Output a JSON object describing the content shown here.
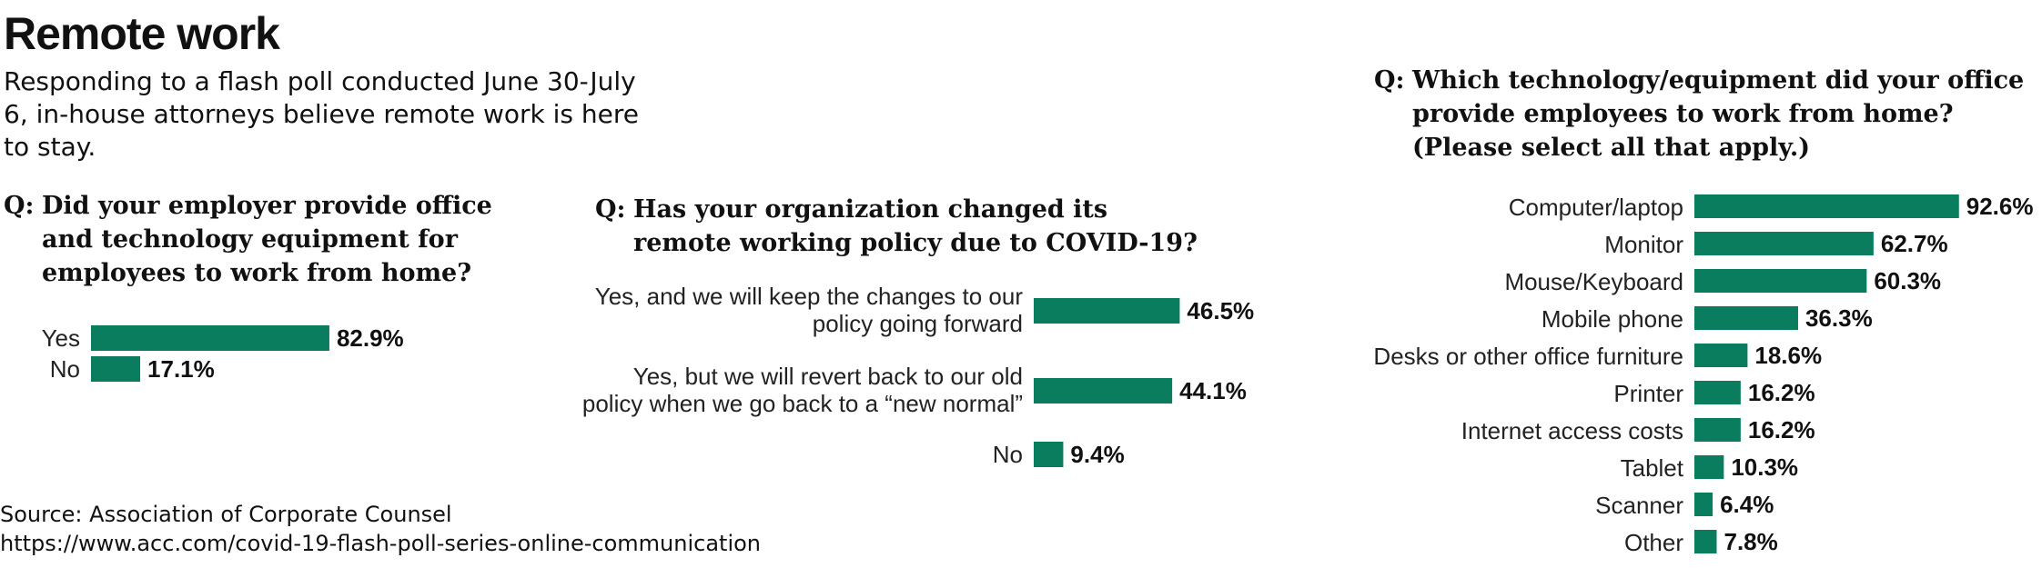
{
  "header": {
    "title": "Remote work",
    "subtitle": "Responding to a flash poll conducted June 30-July 6, in-house attorneys believe remote work is here to stay."
  },
  "colors": {
    "bar": "#0b7d5f"
  },
  "footer": {
    "source": "Source: Association of Corporate Counsel",
    "url": "https://www.acc.com/covid-19-flash-poll-series-online-communication"
  },
  "chart_data": [
    {
      "type": "bar",
      "orientation": "horizontal",
      "question_prefix": "Q:",
      "title": "Did your employer provide office\nand technology equipment for\nemployees to work from home?",
      "categories": [
        "Yes",
        "No"
      ],
      "values": [
        82.9,
        17.1
      ],
      "value_labels": [
        "82.9%",
        "17.1%"
      ],
      "xlim": [
        0,
        100
      ]
    },
    {
      "type": "bar",
      "orientation": "horizontal",
      "question_prefix": "Q:",
      "title": "Has your organization changed its\nremote working policy due to COVID-19?",
      "categories": [
        [
          "Yes, and we will keep the changes to our",
          "policy going forward"
        ],
        [
          "Yes, but we will revert back to our old",
          "policy when we go back to a “new normal”"
        ],
        [
          "No"
        ]
      ],
      "values": [
        46.5,
        44.1,
        9.4
      ],
      "value_labels": [
        "46.5%",
        "44.1%",
        "9.4%"
      ],
      "xlim": [
        0,
        100
      ]
    },
    {
      "type": "bar",
      "orientation": "horizontal",
      "question_prefix": "Q:",
      "title": "Which technology/equipment did your office\nprovide employees to work from home?\n(Please select all that apply.)",
      "categories": [
        "Computer/laptop",
        "Monitor",
        "Mouse/Keyboard",
        "Mobile phone",
        "Desks or other office furniture",
        "Printer",
        "Internet access costs",
        "Tablet",
        "Scanner",
        "Other"
      ],
      "values": [
        92.6,
        62.7,
        60.3,
        36.3,
        18.6,
        16.2,
        16.2,
        10.3,
        6.4,
        7.8
      ],
      "value_labels": [
        "92.6%",
        "62.7%",
        "60.3%",
        "36.3%",
        "18.6%",
        "16.2%",
        "16.2%",
        "10.3%",
        "6.4%",
        "7.8%"
      ],
      "xlim": [
        0,
        100
      ]
    }
  ]
}
